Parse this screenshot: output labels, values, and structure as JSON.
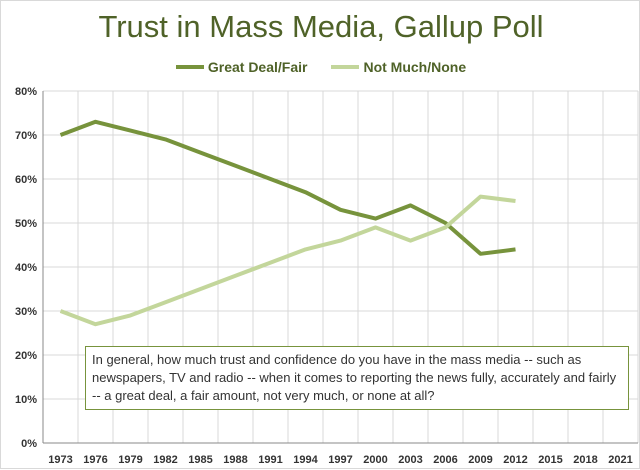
{
  "chart_data": {
    "type": "line",
    "title": "Trust in Mass Media, Gallup Poll",
    "categories": [
      "1973",
      "1976",
      "1979",
      "1982",
      "1985",
      "1988",
      "1991",
      "1994",
      "1997",
      "2000",
      "2003",
      "2006",
      "2009",
      "2012",
      "2015",
      "2018",
      "2021"
    ],
    "series": [
      {
        "name": "Great Deal/Fair",
        "color": "#77933c",
        "values": [
          70,
          73,
          71,
          69,
          66,
          63,
          60,
          57,
          53,
          51,
          54,
          50,
          43,
          44,
          null,
          null,
          null
        ]
      },
      {
        "name": "Not Much/None",
        "color": "#c3d69b",
        "values": [
          30,
          27,
          29,
          32,
          35,
          38,
          41,
          44,
          46,
          49,
          46,
          49,
          56,
          55,
          null,
          null,
          null
        ]
      }
    ],
    "ylim": [
      0,
      80
    ],
    "yticks": [
      "0%",
      "10%",
      "20%",
      "30%",
      "40%",
      "50%",
      "60%",
      "70%",
      "80%"
    ],
    "grid": true,
    "legend_position": "top",
    "annotation": "In general, how much trust and confidence do you have in the mass media -- such as newspapers, TV and radio -- when it comes to reporting the news fully, accurately and fairly -- a great deal, a fair amount, not very much, or none at all?"
  }
}
